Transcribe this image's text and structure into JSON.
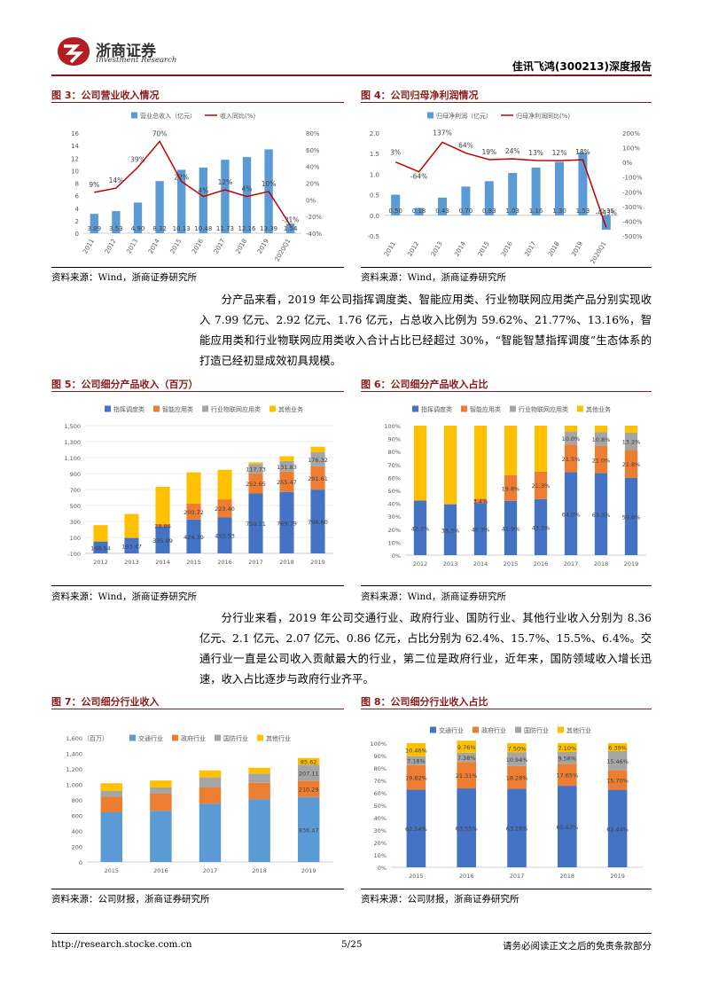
{
  "header": {
    "brand_cn": "浙商证券",
    "brand_en": "Investment Research",
    "report_title": "佳讯飞鸿(300213)深度报告"
  },
  "figures": {
    "f3": {
      "title": "图 3：公司营业收入情况",
      "source": "资料来源：Wind，浙商证券研究所"
    },
    "f4": {
      "title": "图 4：公司归母净利润情况",
      "source": "资料来源：Wind，浙商证券研究所"
    },
    "f5": {
      "title": "图 5：公司细分产品收入（百万）",
      "source": "资料来源：Wind，浙商证券研究所"
    },
    "f6": {
      "title": "图 6：公司细分产品收入占比",
      "source": "资料来源：Wind，浙商证券研究所"
    },
    "f7": {
      "title": "图 7：公司细分行业收入",
      "source": "资料来源：公司财报，浙商证券研究所"
    },
    "f8": {
      "title": "图 8：公司细分行业收入占比",
      "source": "资料来源：公司财报，浙商证券研究所"
    }
  },
  "paragraphs": {
    "p1": "分产品来看，2019 年公司指挥调度类、智能应用类、行业物联网应用类产品分别实现收入 7.99 亿元、2.92 亿元、1.76 亿元，占总收入比例为 59.62%、21.77%、13.16%，智能应用类和行业物联网应用类收入合计占比已经超过 30%，“智能智慧指挥调度”生态体系的打造已经初显成效初具规模。",
    "p2": "分行业来看，2019 年公司交通行业、政府行业、国防行业、其他行业收入分别为 8.36 亿元、2.1 亿元、2.07 亿元、0.86 亿元，占比分别为 62.4%、15.7%、15.5%、6.4%。交通行业一直是公司收入贡献最大的行业，第二位是政府行业，近年来，国防领域收入增长迅速，收入占比逐步与政府行业齐平。"
  },
  "footer": {
    "url": "http://research.stocke.com.cn",
    "page": "5/25",
    "disclaimer": "请务必阅读正文之后的免责条款部分"
  },
  "colors": {
    "blue": "#4472c4",
    "orange": "#ed7d31",
    "gray": "#a5a5a5",
    "yellow": "#ffc000",
    "lightblue": "#5b9bd5",
    "red": "#c00000",
    "brand": "#8b1a1a"
  },
  "chart_data": [
    {
      "id": "f3",
      "type": "bar+line",
      "categories": [
        "2011",
        "2012",
        "2013",
        "2014",
        "2015",
        "2016",
        "2017",
        "2018",
        "2019",
        "2020Q1"
      ],
      "series": [
        {
          "name": "营业总收入（亿元）",
          "axis": "left",
          "values": [
            3.09,
            3.53,
            4.9,
            8.32,
            10.13,
            10.48,
            11.73,
            12.16,
            13.39,
            1.54
          ],
          "labels": [
            "3.09",
            "3.53",
            "4.90",
            "8.32",
            "10.13",
            "10.48",
            "11.73",
            "12.16",
            "13.39",
            "1.54"
          ]
        },
        {
          "name": "收入同比(%)",
          "axis": "right",
          "values": [
            9,
            14,
            39,
            70,
            22,
            4,
            12,
            4,
            10,
            -31
          ],
          "labels": [
            "9%",
            "14%",
            "39%",
            "70%",
            "22%",
            "4%",
            "12%",
            "4%",
            "10%",
            "-31%"
          ]
        }
      ],
      "ylim": [
        0,
        16
      ],
      "yticks": [
        "0",
        "2",
        "4",
        "6",
        "8",
        "10",
        "12",
        "14",
        "16"
      ],
      "y2lim": [
        -40,
        80
      ],
      "y2ticks": [
        "-40%",
        "-20%",
        "0%",
        "20%",
        "40%",
        "60%",
        "80%"
      ]
    },
    {
      "id": "f4",
      "type": "bar+line",
      "categories": [
        "2011",
        "2012",
        "2013",
        "2014",
        "2015",
        "2016",
        "2017",
        "2018",
        "2019",
        "2020Q1"
      ],
      "series": [
        {
          "name": "归母净利润（亿元）",
          "axis": "left",
          "values": [
            0.5,
            0.18,
            0.43,
            0.7,
            0.83,
            1.03,
            1.16,
            1.3,
            1.53,
            -0.35
          ],
          "labels": [
            "0.50",
            "0.18",
            "0.43",
            "0.70",
            "0.83",
            "1.03",
            "1.16",
            "1.30",
            "1.53",
            "-0.35"
          ]
        },
        {
          "name": "归母净利润同比(%)",
          "axis": "right",
          "values": [
            3,
            -64,
            137,
            64,
            19,
            24,
            13,
            12,
            18,
            -443
          ],
          "labels": [
            "3%",
            "-64%",
            "137%",
            "64%",
            "19%",
            "24%",
            "13%",
            "12%",
            "18%",
            "-443%"
          ]
        }
      ],
      "ylim": [
        -0.5,
        2.0
      ],
      "yticks": [
        "-0.5",
        "0.0",
        "0.5",
        "1.0",
        "1.5",
        "2.0"
      ],
      "y2lim": [
        -500,
        200
      ],
      "y2ticks": [
        "-500%",
        "-400%",
        "-300%",
        "-200%",
        "-100%",
        "0%",
        "100%",
        "200%"
      ]
    },
    {
      "id": "f5",
      "type": "stacked-bar",
      "categories": [
        "2012",
        "2013",
        "2014",
        "2015",
        "2016",
        "2017",
        "2018",
        "2019"
      ],
      "series": [
        {
          "name": "指挥调度类",
          "values": [
            148.54,
            193.47,
            335.89,
            424.39,
            453.53,
            750.11,
            769.79,
            798.8
          ],
          "labels": [
            "148.54",
            "193.47",
            "335.89",
            "424.39",
            "453.53",
            "750.11",
            "769.79",
            "798.80"
          ]
        },
        {
          "name": "智能应用类",
          "values": [
            0,
            0,
            28.86,
            200.72,
            223.4,
            252.65,
            255.47,
            291.61
          ],
          "labels": [
            "",
            "",
            "28.86",
            "200.72",
            "223.40",
            "252.65",
            "255.47",
            "291.61"
          ]
        },
        {
          "name": "行业物联网应用类",
          "values": [
            0,
            0,
            0,
            0,
            0,
            117.73,
            131.83,
            176.32
          ],
          "labels": [
            "",
            "",
            "",
            "",
            "",
            "117.73",
            "131.83",
            "176.32"
          ]
        },
        {
          "name": "其他业务",
          "values": [
            205,
            300,
            470,
            390,
            370,
            20,
            60,
            70
          ],
          "labels": [
            "",
            "",
            "",
            "",
            "",
            "",
            "",
            ""
          ]
        }
      ],
      "ylim": [
        -100,
        1500
      ],
      "yticks": [
        "-100",
        "100",
        "300",
        "500",
        "700",
        "900",
        "1,100",
        "1,300",
        "1,500"
      ]
    },
    {
      "id": "f6",
      "type": "stacked-bar-100",
      "categories": [
        "2012",
        "2013",
        "2014",
        "2015",
        "2016",
        "2017",
        "2018",
        "2019"
      ],
      "series": [
        {
          "name": "指挥调度类",
          "values": [
            42.1,
            39.3,
            40.3,
            41.9,
            43.3,
            64.0,
            63.3,
            59.6
          ],
          "labels": [
            "42.1%",
            "39.3%",
            "40.3%",
            "41.9%",
            "43.3%",
            "64.0%",
            "63.3%",
            "59.6%"
          ]
        },
        {
          "name": "智能应用类",
          "values": [
            0,
            0,
            3.4,
            19.8,
            21.3,
            21.5,
            21.0,
            21.8
          ],
          "labels": [
            "",
            "",
            "3.4%",
            "19.8%",
            "21.3%",
            "21.5%",
            "21.0%",
            "21.8%"
          ]
        },
        {
          "name": "行业物联网应用类",
          "values": [
            0,
            0,
            0,
            0,
            0,
            10.0,
            10.8,
            13.2
          ],
          "labels": [
            "",
            "",
            "",
            "",
            "",
            "10.0%",
            "10.8%",
            "13.2%"
          ]
        },
        {
          "name": "其他业务",
          "values": [
            57.9,
            60.7,
            56.3,
            38.3,
            35.4,
            4.5,
            4.9,
            5.4
          ],
          "labels": [
            "",
            "",
            "",
            "",
            "",
            "",
            "",
            ""
          ]
        }
      ],
      "ylim": [
        0,
        100
      ],
      "yticks": [
        "0%",
        "10%",
        "20%",
        "30%",
        "40%",
        "50%",
        "60%",
        "70%",
        "80%",
        "90%",
        "100%"
      ]
    },
    {
      "id": "f7",
      "type": "stacked-bar",
      "unit": "（百万）",
      "categories": [
        "2015",
        "2016",
        "2017",
        "2018",
        "2019"
      ],
      "series": [
        {
          "name": "交通行业",
          "values": [
            640,
            660,
            750,
            810,
            836.47
          ],
          "labels": [
            "",
            "",
            "",
            "",
            "836.47"
          ]
        },
        {
          "name": "政府行业",
          "values": [
            200,
            220,
            210,
            210,
            210.29
          ],
          "labels": [
            "",
            "",
            "",
            "",
            "210.29"
          ]
        },
        {
          "name": "国防行业",
          "values": [
            75,
            80,
            130,
            120,
            207.11
          ],
          "labels": [
            "",
            "",
            "",
            "",
            "207.11"
          ]
        },
        {
          "name": "其他行业",
          "values": [
            100,
            90,
            90,
            75,
            85.62
          ],
          "labels": [
            "",
            "",
            "",
            "",
            "85.62"
          ]
        }
      ],
      "ylim": [
        0,
        1600
      ],
      "yticks": [
        "0",
        "200",
        "400",
        "600",
        "800",
        "1,000",
        "1,200",
        "1,400",
        "1,600"
      ]
    },
    {
      "id": "f8",
      "type": "stacked-bar-100",
      "categories": [
        "2015",
        "2016",
        "2017",
        "2018",
        "2019"
      ],
      "series": [
        {
          "name": "交通行业",
          "values": [
            62.54,
            63.55,
            63.28,
            65.67,
            62.44
          ],
          "labels": [
            "62.54%",
            "63.55%",
            "63.28%",
            "65.67%",
            "62.44%"
          ]
        },
        {
          "name": "政府行业",
          "values": [
            19.82,
            21.31,
            18.28,
            17.65,
            15.7
          ],
          "labels": [
            "19.82%",
            "21.31%",
            "18.28%",
            "17.65%",
            "15.70%"
          ]
        },
        {
          "name": "国防行业",
          "values": [
            7.18,
            7.38,
            10.94,
            9.58,
            15.46
          ],
          "labels": [
            "7.18%",
            "7.38%",
            "10.94%",
            "9.58%",
            "15.46%"
          ]
        },
        {
          "name": "其他行业",
          "values": [
            10.46,
            9.76,
            7.5,
            7.1,
            6.39
          ],
          "labels": [
            "10.46%",
            "9.76%",
            "7.50%",
            "7.10%",
            "6.39%"
          ]
        }
      ],
      "ylim": [
        0,
        100
      ],
      "yticks": [
        "0%",
        "10%",
        "20%",
        "30%",
        "40%",
        "50%",
        "60%",
        "70%",
        "80%",
        "90%",
        "100%"
      ]
    }
  ]
}
